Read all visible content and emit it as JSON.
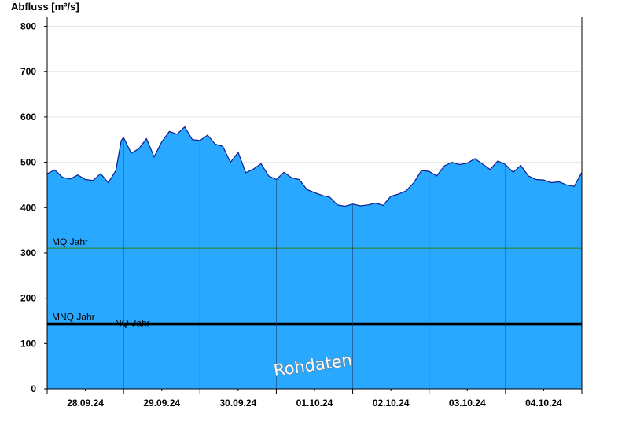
{
  "chart_data": {
    "type": "area",
    "ylabel": "Abfluss [m³/s]",
    "ylim": [
      0,
      820
    ],
    "yticks": [
      0,
      100,
      200,
      300,
      400,
      500,
      600,
      700,
      800
    ],
    "xlim": [
      0,
      7
    ],
    "x_tick_labels": [
      "28.09.24",
      "29.09.24",
      "30.09.24",
      "01.10.24",
      "02.10.24",
      "03.10.24",
      "04.10.24"
    ],
    "fill_color": "#29a8ff",
    "line_color": "#0a1f8f",
    "x": [
      0,
      0.1,
      0.2,
      0.3,
      0.4,
      0.5,
      0.6,
      0.7,
      0.8,
      0.9,
      0.97,
      1.0,
      1.1,
      1.2,
      1.3,
      1.4,
      1.5,
      1.6,
      1.7,
      1.8,
      1.9,
      2.0,
      2.1,
      2.2,
      2.3,
      2.4,
      2.5,
      2.6,
      2.7,
      2.8,
      2.9,
      3.0,
      3.1,
      3.2,
      3.3,
      3.4,
      3.5,
      3.6,
      3.7,
      3.8,
      3.9,
      4.0,
      4.1,
      4.2,
      4.3,
      4.4,
      4.5,
      4.6,
      4.7,
      4.8,
      4.9,
      5.0,
      5.1,
      5.2,
      5.3,
      5.4,
      5.5,
      5.6,
      5.7,
      5.8,
      5.9,
      6.0,
      6.1,
      6.2,
      6.3,
      6.4,
      6.5,
      6.6,
      6.7,
      6.8,
      6.9,
      7.0
    ],
    "series": [
      {
        "values": [
          475,
          483,
          467,
          463,
          472,
          462,
          460,
          475,
          455,
          482,
          548,
          555,
          520,
          530,
          552,
          512,
          545,
          568,
          562,
          578,
          550,
          548,
          560,
          540,
          535,
          500,
          522,
          477,
          485,
          497,
          470,
          462,
          478,
          466,
          462,
          440,
          433,
          427,
          423,
          406,
          403,
          408,
          404,
          406,
          410,
          405,
          425,
          430,
          437,
          455,
          482,
          480,
          470,
          492,
          500,
          495,
          498,
          508,
          496,
          484,
          503,
          495,
          478,
          493,
          470,
          462,
          461,
          455,
          457,
          450,
          447,
          478
        ]
      }
    ],
    "reference_lines": [
      {
        "label": "MQ Jahr",
        "value": 310,
        "color": "#2e8b57"
      },
      {
        "label": "MNQ Jahr",
        "value": 145,
        "color": "#000000"
      },
      {
        "label": "NQ Jahr",
        "value": 141,
        "color": "#000000"
      }
    ],
    "watermark": "Rohdaten",
    "grid": true,
    "legend": "none"
  }
}
